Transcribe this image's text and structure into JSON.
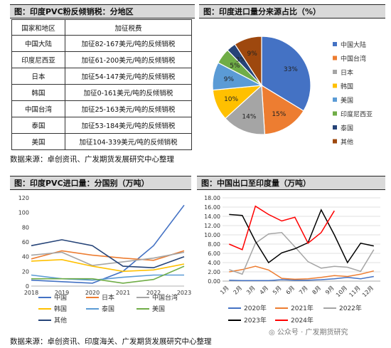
{
  "panel1": {
    "title": "图：印度PVC粉反倾销税：分地区",
    "header": [
      "国家和地区",
      "加征税费"
    ],
    "rows": [
      [
        "中国大陆",
        "加征82-167美元/吨的反倾销税"
      ],
      [
        "印度尼西亚",
        "加征61-200美元/吨的反倾销税"
      ],
      [
        "日本",
        "加征54-147美元/吨的反倾销税"
      ],
      [
        "韩国",
        "加征0-161美元/吨的反倾销税"
      ],
      [
        "中国台湾",
        "加征25-163美元/吨的反倾销税"
      ],
      [
        "泰国",
        "加征53-184美元/吨的反倾销税"
      ],
      [
        "美国",
        "加征104-339美元/吨的反倾销税"
      ]
    ]
  },
  "panel2": {
    "title": "图：印度进口量分来源占比（%）"
  },
  "panel3": {
    "title": "图：印度PVC进口量：分国别（万吨）"
  },
  "panel4": {
    "title": "图：中国出口至印度量（万吨）"
  },
  "source_top": "数据来源：卓创资讯、广发期货发展研究中心整理",
  "source_bottom": "数据来源：卓创资讯、印度海关、广发期货发展研究中心整理",
  "watermark": "公众号 · 广发期货研究",
  "chart_data": [
    {
      "type": "pie",
      "labels": [
        "中国大陆",
        "中国台湾",
        "日本",
        "韩国",
        "美国",
        "印度尼西亚",
        "泰国",
        "其他"
      ],
      "values": [
        33,
        15,
        14,
        10,
        9,
        5,
        3,
        9
      ],
      "data_labels": [
        "33%",
        "15%",
        "14%",
        "10%",
        "9%",
        "5%",
        "3%",
        "9%"
      ],
      "colors": [
        "#4472c4",
        "#ed7d31",
        "#a5a5a5",
        "#ffc000",
        "#5b9bd5",
        "#70ad47",
        "#264478",
        "#9e480e"
      ],
      "legend": "right"
    },
    {
      "type": "line",
      "x": [
        "2018",
        "2019",
        "2020",
        "2021",
        "2022",
        "2023"
      ],
      "ylim": [
        0,
        120
      ],
      "series": [
        {
          "name": "中国",
          "color": "#4472c4",
          "values": [
            8,
            6,
            4,
            20,
            55,
            110
          ]
        },
        {
          "name": "日本",
          "color": "#ed7d31",
          "values": [
            37,
            48,
            42,
            38,
            35,
            48
          ]
        },
        {
          "name": "中国台湾",
          "color": "#a5a5a5",
          "values": [
            42,
            46,
            28,
            33,
            38,
            46
          ]
        },
        {
          "name": "韩国",
          "color": "#ffc000",
          "values": [
            34,
            36,
            27,
            20,
            22,
            30
          ]
        },
        {
          "name": "泰国",
          "color": "#5b9bd5",
          "values": [
            15,
            10,
            8,
            12,
            15,
            15
          ]
        },
        {
          "name": "美国",
          "color": "#70ad47",
          "values": [
            10,
            10,
            10,
            4,
            9,
            27
          ]
        },
        {
          "name": "其他",
          "color": "#264478",
          "values": [
            55,
            63,
            55,
            27,
            25,
            40
          ]
        }
      ],
      "legend": "bottom"
    },
    {
      "type": "line",
      "x": [
        "1月",
        "2月",
        "3月",
        "4月",
        "5月",
        "6月",
        "7月",
        "8月",
        "9月",
        "10月",
        "11月",
        "12月"
      ],
      "ylim": [
        0,
        18
      ],
      "yticks": [
        "0.00",
        "2.00",
        "4.00",
        "6.00",
        "8.00",
        "10.00",
        "12.00",
        "14.00",
        "16.00",
        "18.00"
      ],
      "series": [
        {
          "name": "2020年",
          "color": "#4472c4",
          "values": [
            0.2,
            0.1,
            0.1,
            0.1,
            0.3,
            0.2,
            0.2,
            0.3,
            0.5,
            0.8,
            0.5,
            1.0
          ]
        },
        {
          "name": "2021年",
          "color": "#ed7d31",
          "values": [
            2.0,
            2.5,
            3.2,
            2.4,
            0.6,
            0.4,
            0.5,
            0.8,
            1.2,
            1.0,
            1.5,
            2.2
          ]
        },
        {
          "name": "2022年",
          "color": "#a5a5a5",
          "values": [
            2.5,
            1.5,
            8.2,
            10.2,
            10.5,
            7.4,
            4.2,
            2.8,
            3.2,
            3.0,
            2.1,
            6.8
          ]
        },
        {
          "name": "2023年",
          "color": "#000000",
          "values": [
            14.4,
            14.2,
            8.6,
            4.0,
            6.1,
            7.0,
            8.3,
            15.4,
            10.0,
            4.0,
            8.2,
            7.6
          ]
        },
        {
          "name": "2024年",
          "color": "#ff0000",
          "values": [
            8.0,
            6.8,
            16.2,
            14.4,
            13.0,
            13.8,
            8.2,
            10.5,
            15.2,
            null,
            null,
            null
          ]
        }
      ],
      "legend": "bottom"
    }
  ]
}
